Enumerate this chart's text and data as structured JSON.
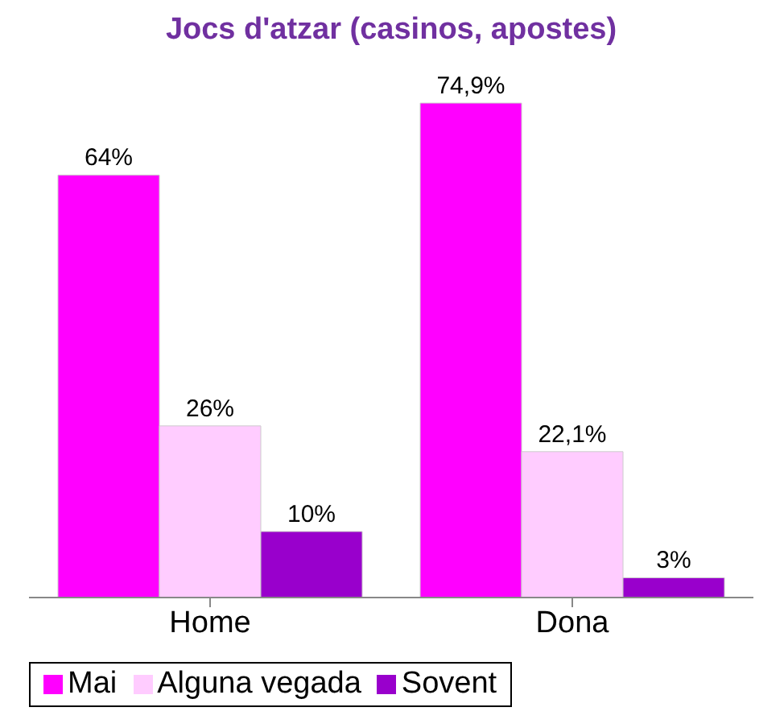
{
  "chart_data": {
    "type": "bar",
    "title": "Jocs d'atzar (casinos, apostes)",
    "categories": [
      "Home",
      "Dona"
    ],
    "series": [
      {
        "name": "Mai",
        "color": "#ff00ff",
        "values": [
          64,
          74.9
        ],
        "value_labels": [
          "64%",
          "74,9%"
        ]
      },
      {
        "name": "Alguna vegada",
        "color": "#ffccff",
        "values": [
          26,
          22.1
        ],
        "value_labels": [
          "26%",
          "22,1%"
        ]
      },
      {
        "name": "Sovent",
        "color": "#9900cc",
        "values": [
          10,
          3
        ],
        "value_labels": [
          "10%",
          "3%"
        ]
      }
    ],
    "legend": "bottom",
    "grid": false
  }
}
